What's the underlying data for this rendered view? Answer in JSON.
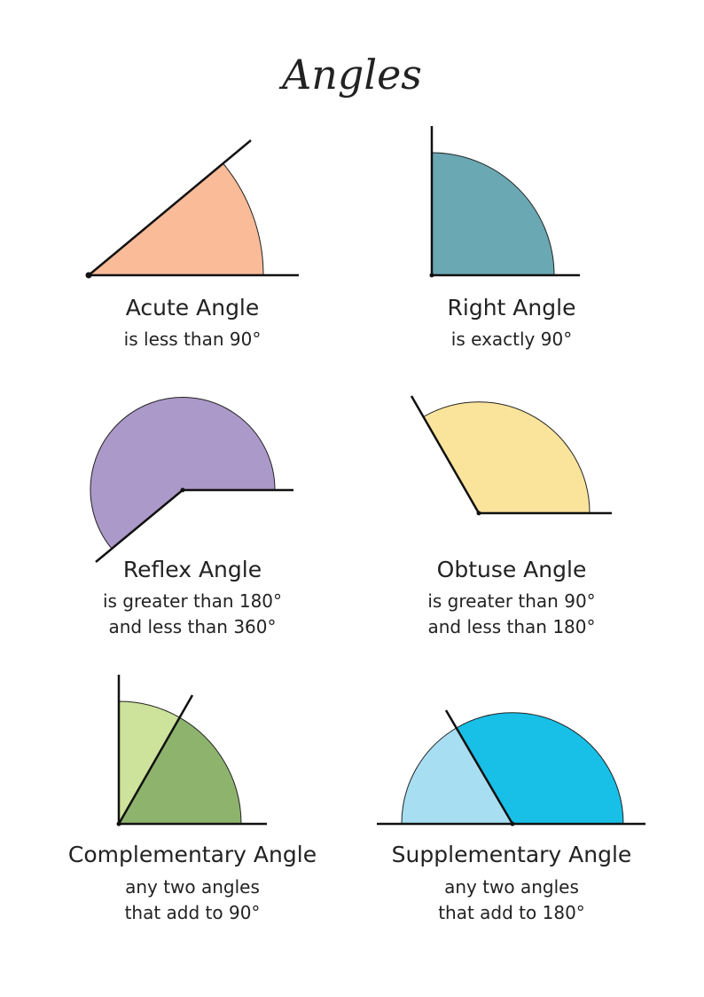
{
  "title": "Angles",
  "angles": [
    {
      "name": "Acute Angle",
      "description": [
        "is less than 90°"
      ]
    },
    {
      "name": "Right Angle",
      "description": [
        "is exactly 90°"
      ]
    },
    {
      "name": "Reflex Angle",
      "description": [
        "is greater than 180°",
        "and less than 360°"
      ]
    },
    {
      "name": "Obtuse Angle",
      "description": [
        "is greater than 90°",
        "and less than 180°"
      ]
    },
    {
      "name": "Complementary Angle",
      "description": [
        "any two angles",
        "that add to 90°"
      ]
    },
    {
      "name": "Supplementary Angle",
      "description": [
        "any two angles",
        "that add to 180°"
      ]
    }
  ]
}
